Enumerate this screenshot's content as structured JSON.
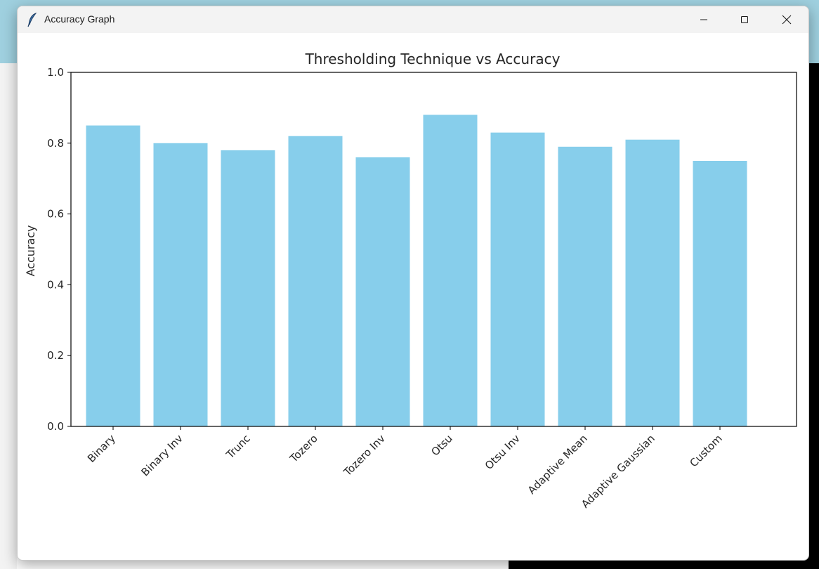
{
  "window": {
    "title": "Accuracy Graph",
    "controls": {
      "minimize": "minimize-icon",
      "maximize": "maximize-icon",
      "close": "close-icon"
    }
  },
  "colors": {
    "bar": "#87ceeb",
    "axis": "#000000",
    "text": "#262626",
    "titlebar": "#f3f3f3"
  },
  "chart_data": {
    "type": "bar",
    "title": "Thresholding Technique vs Accuracy",
    "xlabel": "",
    "ylabel": "Accuracy",
    "categories": [
      "Binary",
      "Binary Inv",
      "Trunc",
      "Tozero",
      "Tozero Inv",
      "Otsu",
      "Otsu Inv",
      "Adaptive Mean",
      "Adaptive Gaussian",
      "Custom"
    ],
    "values": [
      0.85,
      0.8,
      0.78,
      0.82,
      0.76,
      0.88,
      0.83,
      0.79,
      0.81,
      0.75
    ],
    "ylim": [
      0,
      1.0
    ],
    "yticks": [
      "0.0",
      "0.2",
      "0.4",
      "0.6",
      "0.8",
      "1.0"
    ],
    "grid": false,
    "legend": "none"
  }
}
